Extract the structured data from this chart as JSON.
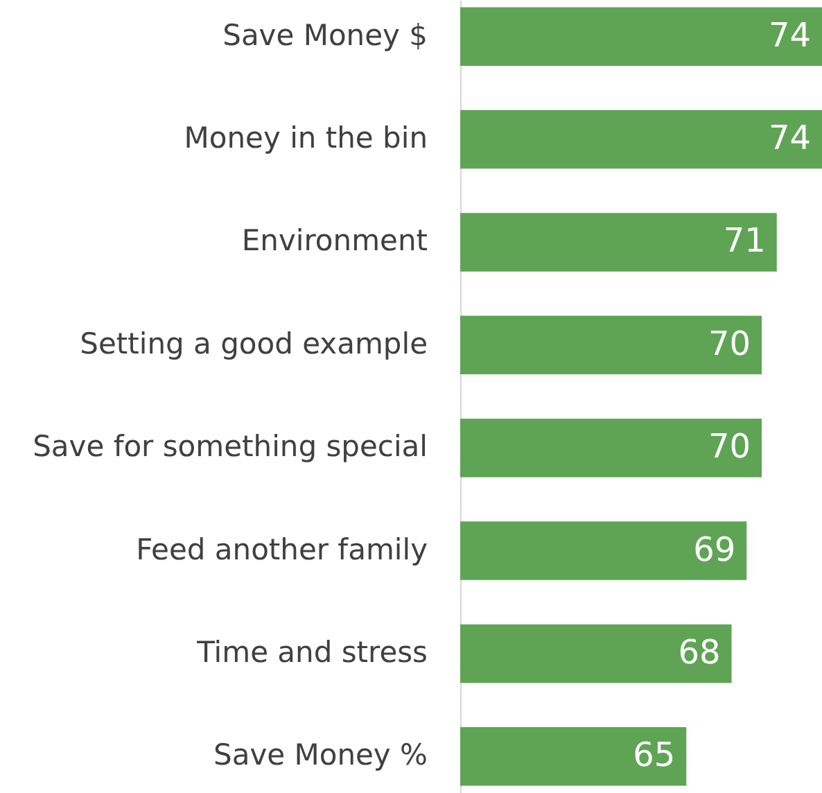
{
  "chart_data": {
    "type": "bar",
    "orientation": "horizontal",
    "categories": [
      "Save Money $",
      "Money in the bin",
      "Environment",
      "Setting a good example",
      "Save for something special",
      "Feed another family",
      "Time and stress",
      "Save Money %"
    ],
    "values": [
      74,
      74,
      71,
      70,
      70,
      69,
      68,
      65
    ],
    "color": "#5ea454",
    "xlim": [
      50,
      74
    ],
    "data_labels": true,
    "tick_labels": "y"
  }
}
